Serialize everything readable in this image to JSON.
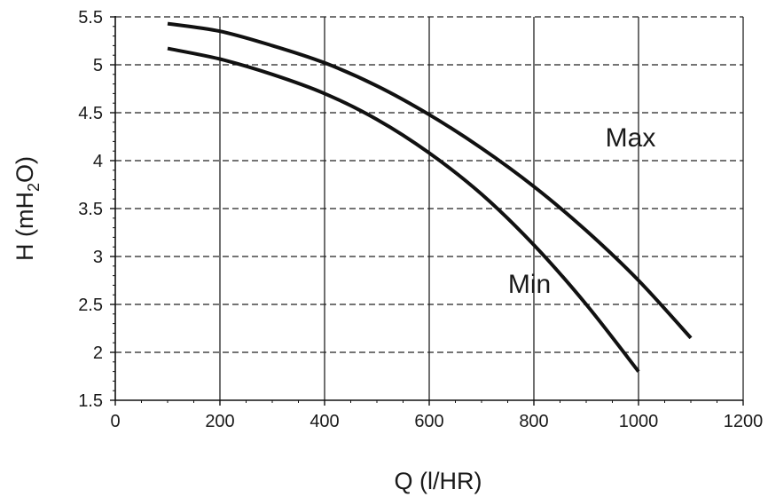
{
  "chart_data": {
    "type": "line",
    "xlabel": "Q (l/HR)",
    "ylabel_main": "H (mH",
    "ylabel_sub": "2",
    "ylabel_end": "O)",
    "xlim": [
      0,
      1200
    ],
    "ylim": [
      1.5,
      5.5
    ],
    "x_ticks": [
      0,
      200,
      400,
      600,
      800,
      1000,
      1200
    ],
    "y_ticks": [
      1.5,
      2,
      2.5,
      3,
      3.5,
      4,
      4.5,
      5,
      5.5
    ],
    "x_tick_labels": [
      "0",
      "200",
      "400",
      "600",
      "800",
      "1000",
      "1200"
    ],
    "y_tick_labels": [
      "1.5",
      "2",
      "2.5",
      "3",
      "3.5",
      "4",
      "4.5",
      "5",
      "5.5"
    ],
    "grid": {
      "x": "solid",
      "y": "dashed"
    },
    "series": [
      {
        "name": "Max",
        "x": [
          100,
          200,
          300,
          400,
          500,
          600,
          700,
          800,
          900,
          1000,
          1100
        ],
        "y": [
          5.43,
          5.35,
          5.2,
          5.02,
          4.78,
          4.48,
          4.13,
          3.73,
          3.27,
          2.75,
          2.15
        ]
      },
      {
        "name": "Min",
        "x": [
          100,
          200,
          300,
          400,
          500,
          600,
          700,
          800,
          900,
          1000
        ],
        "y": [
          5.17,
          5.06,
          4.9,
          4.7,
          4.43,
          4.08,
          3.65,
          3.12,
          2.5,
          1.8
        ]
      }
    ],
    "color": "#111111"
  }
}
